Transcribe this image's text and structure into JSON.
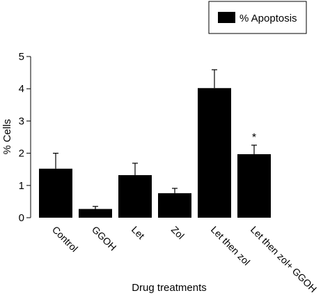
{
  "chart_data": {
    "type": "bar",
    "categories": [
      "Control",
      "GGOH",
      "Let",
      "Zol",
      "Let then zol",
      "Let then zol+ GGOH"
    ],
    "series": [
      {
        "name": "% Apoptosis",
        "values": [
          1.52,
          0.27,
          1.32,
          0.76,
          4.02,
          1.97
        ],
        "errors": [
          0.48,
          0.08,
          0.37,
          0.15,
          0.57,
          0.28
        ],
        "color": "#000000"
      }
    ],
    "annotations": [
      "",
      "",
      "",
      "",
      "",
      "*"
    ],
    "ylabel": "% Cells",
    "xlabel": "Drug treatments",
    "ylim": [
      0,
      5
    ],
    "yticks": [
      0,
      1,
      2,
      3,
      4,
      5
    ],
    "grid": false,
    "legend_position": "top-right"
  }
}
